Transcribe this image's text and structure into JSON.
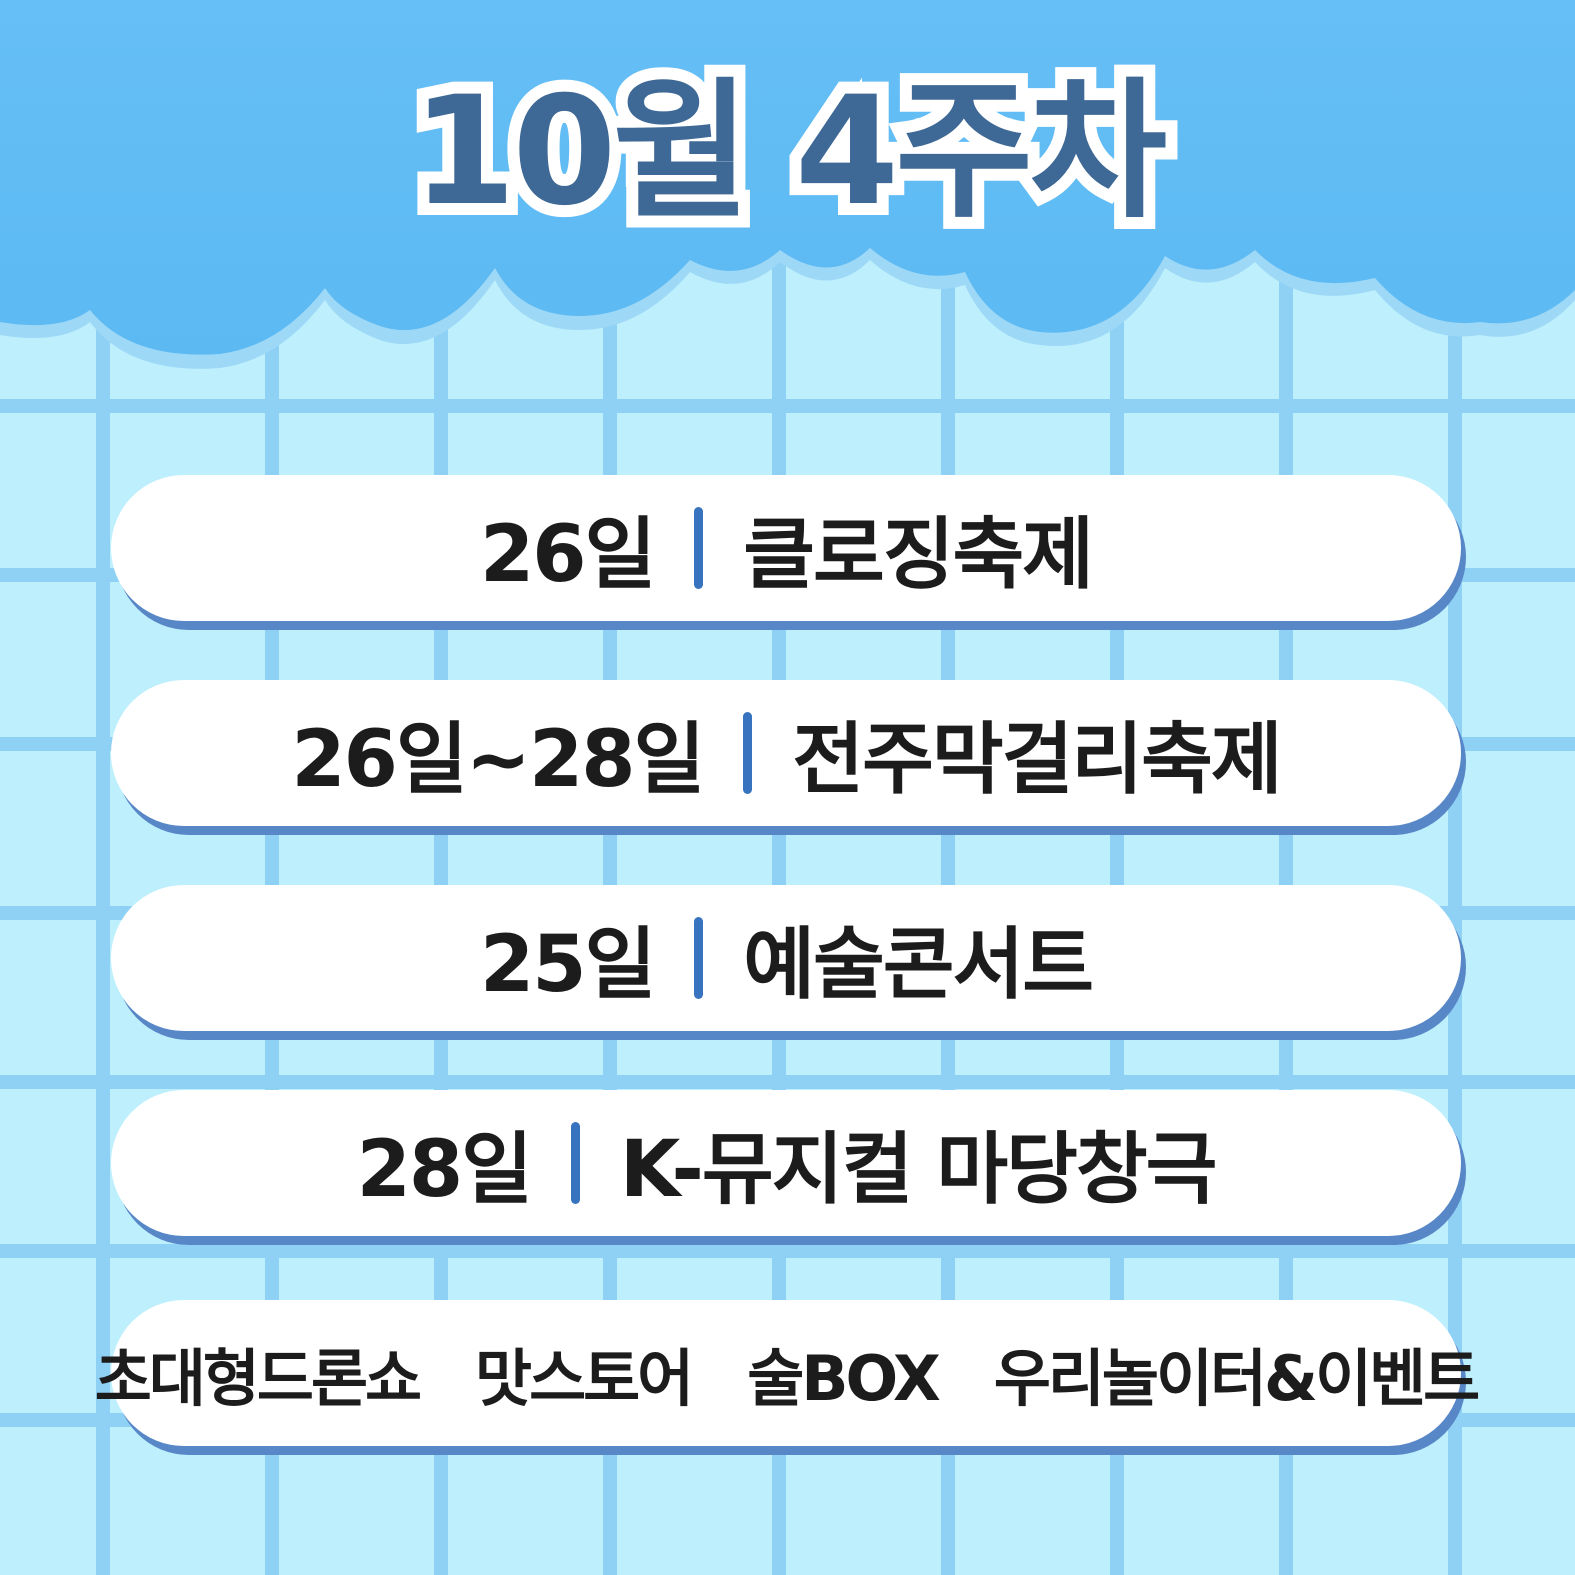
{
  "title": "10월 4주차",
  "events": [
    {
      "date": "26일",
      "name": "클로징축제"
    },
    {
      "date": "26일~28일",
      "name": "전주막걸리축제"
    },
    {
      "date": "25일",
      "name": "예술콘서트"
    },
    {
      "date": "28일",
      "name": "K-뮤지컬 마당창극"
    }
  ],
  "extras": [
    "초대형드론쇼",
    "맛스토어",
    "술BOX",
    "우리놀이터&이벤트"
  ],
  "colors": {
    "sky": "#63bef5",
    "grid_bg": "#bdeffc",
    "grid_line": "#8fd1f5",
    "title_text": "#3e6895",
    "separator": "#3773be",
    "pill_shadow": "#5887c8"
  }
}
